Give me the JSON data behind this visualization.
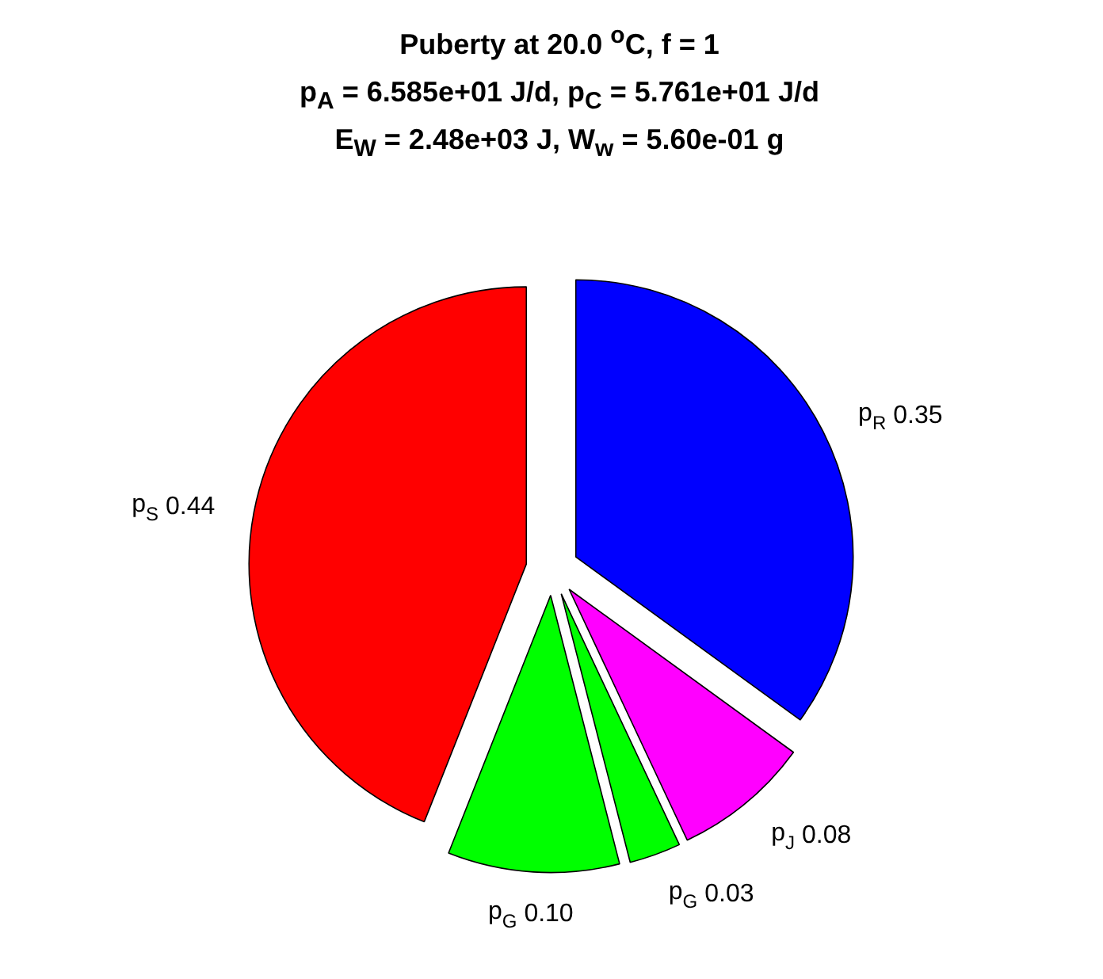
{
  "chart_data": {
    "type": "pie",
    "title": "Puberty at 20.0 $^{o}$C, f = 1",
    "subtitle": "p$_{A}$ = 6.585e+01 J/d,  p$_{C}$ = 5.761e+01 J/d\nE$_{W}$ = 2.48e+03 J, W$_{w}$ = 5.60e-01 g",
    "categories": [
      "p$_{R}$",
      "p$_{J}$",
      "p$_{G}$",
      "p$_{G}$",
      "p$_{S}$"
    ],
    "values": [
      0.35,
      0.08,
      0.03,
      0.1,
      0.44
    ],
    "colors": [
      "#0000ff",
      "#ff00ff",
      "#00ff00",
      "#00ff00",
      "#ff0000"
    ],
    "value_labels": [
      "0.35",
      "0.08",
      "0.03",
      "0.10",
      "0.44"
    ]
  }
}
